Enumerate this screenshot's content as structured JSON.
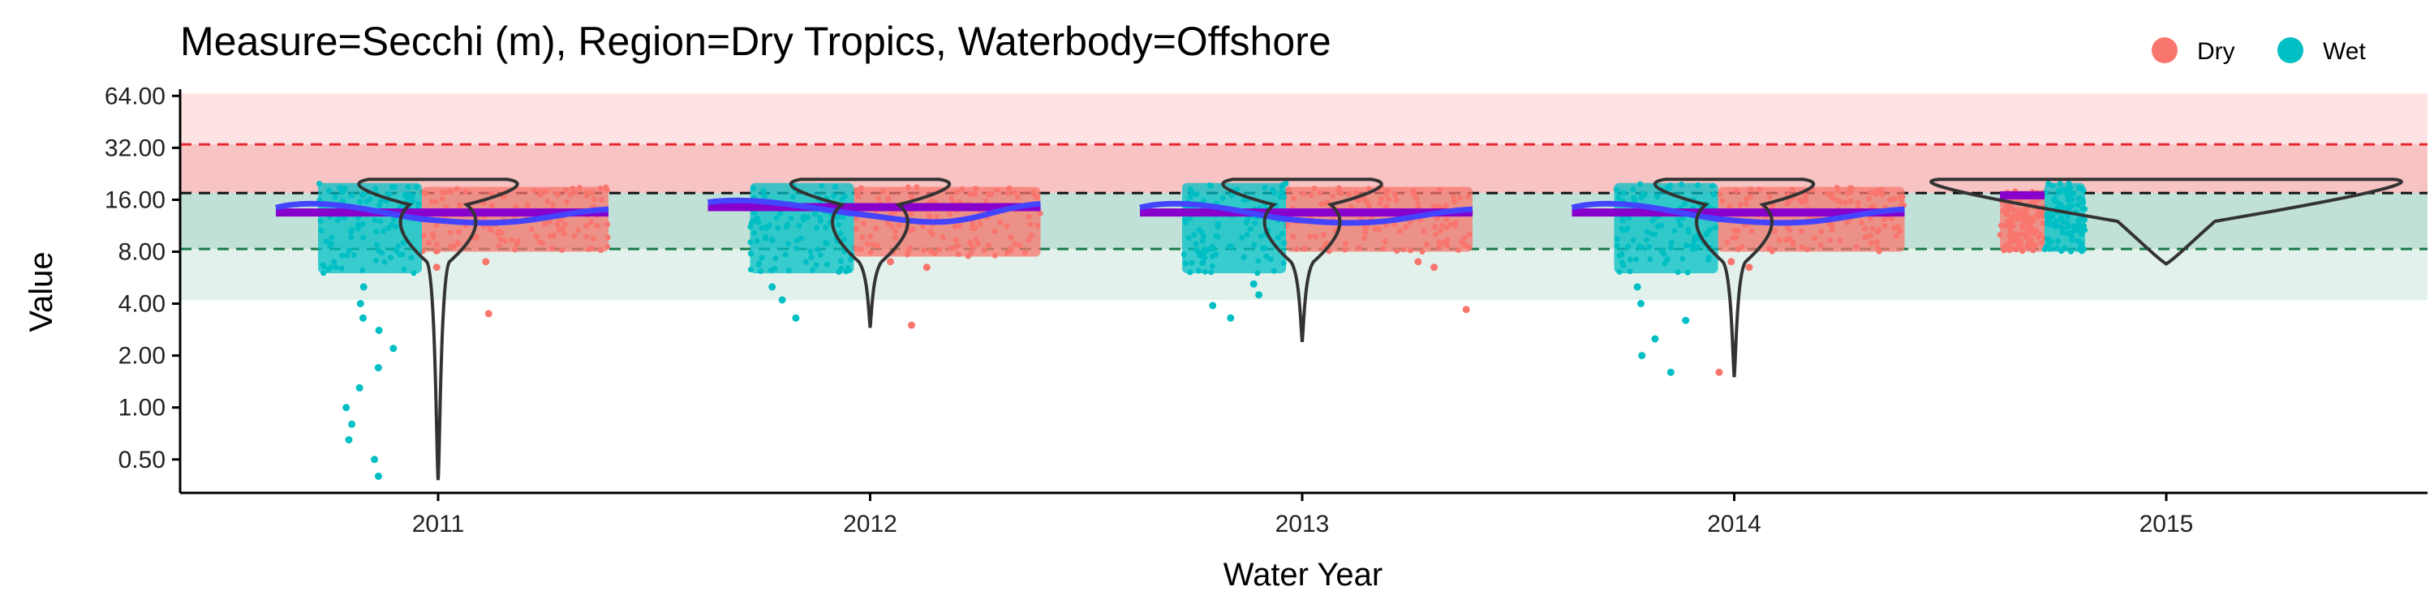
{
  "chart_data": {
    "type": "scatter",
    "title": "Measure=Secchi (m), Region=Dry Tropics, Waterbody=Offshore",
    "xlabel": "Water Year",
    "ylabel": "Value",
    "x_categories": [
      "2011",
      "2012",
      "2013",
      "2014",
      "2015"
    ],
    "y_scale": "log2",
    "y_ticks": [
      0.5,
      1,
      2,
      4,
      8,
      16,
      32,
      64
    ],
    "y_tick_labels": [
      "0.50",
      "1.00",
      "2.00",
      "4.00",
      "8.00",
      "16.00",
      "32.00",
      "64.00"
    ],
    "ylim": [
      0.32,
      70
    ],
    "grid": false,
    "legend": {
      "position": "top-right",
      "entries": [
        "Dry",
        "Wet"
      ]
    },
    "colors": {
      "Dry": "#F8766D",
      "Wet": "#00BFC4",
      "smooth": "#4444ff",
      "mean": "#8800cc",
      "violin": "#333333"
    },
    "threshold_bands": [
      {
        "from": 33.5,
        "to": 66,
        "color": "#fde3e3"
      },
      {
        "from": 17.5,
        "to": 33.5,
        "color": "#f8c3c3"
      },
      {
        "from": 8.3,
        "to": 17.5,
        "color": "#c1e1d8"
      },
      {
        "from": 4.2,
        "to": 8.3,
        "color": "#e3f1ec"
      }
    ],
    "reference_lines": [
      {
        "y": 33.5,
        "color": "#e8262f"
      },
      {
        "y": 17.5,
        "color": "#111111"
      },
      {
        "y": 8.3,
        "color": "#1a7a4a"
      }
    ],
    "series": [
      {
        "name": "Dry",
        "color": "#F8766D",
        "points": [
          {
            "x": "2011",
            "typical_range": [
              8,
              19
            ],
            "outliers": [
              3.5,
              6.5,
              7
            ]
          },
          {
            "x": "2012",
            "typical_range": [
              7.5,
              19
            ],
            "outliers": [
              3.0,
              6.5,
              7
            ]
          },
          {
            "x": "2013",
            "typical_range": [
              8,
              19
            ],
            "outliers": [
              3.7,
              6.5,
              7
            ]
          },
          {
            "x": "2014",
            "typical_range": [
              8,
              19
            ],
            "outliers": [
              1.6,
              6.5,
              7
            ]
          },
          {
            "x": "2015",
            "typical_range": [
              8,
              18
            ],
            "outliers": []
          }
        ]
      },
      {
        "name": "Wet",
        "color": "#00BFC4",
        "points": [
          {
            "x": "2011",
            "typical_range": [
              6,
              20
            ],
            "outliers": [
              0.4,
              0.5,
              0.65,
              0.8,
              1.0,
              1.3,
              1.7,
              2.2,
              2.8,
              3.3,
              4.0,
              5.0
            ]
          },
          {
            "x": "2012",
            "typical_range": [
              6,
              20
            ],
            "outliers": [
              3.3,
              4.2,
              5.0
            ]
          },
          {
            "x": "2013",
            "typical_range": [
              6,
              20
            ],
            "outliers": [
              3.3,
              3.9,
              4.5,
              5.2
            ]
          },
          {
            "x": "2014",
            "typical_range": [
              6,
              20
            ],
            "outliers": [
              1.6,
              2.0,
              2.5,
              3.2,
              4.0,
              5.0
            ]
          },
          {
            "x": "2015",
            "typical_range": [
              8,
              20
            ],
            "outliers": []
          }
        ]
      }
    ],
    "means": [
      {
        "x": "2011",
        "value": 13.5
      },
      {
        "x": "2012",
        "value": 14.5
      },
      {
        "x": "2013",
        "value": 13.5
      },
      {
        "x": "2014",
        "value": 13.5
      },
      {
        "x": "2015",
        "value": 17
      }
    ],
    "violins": [
      {
        "x": "2011",
        "min": 0.38,
        "max": 21
      },
      {
        "x": "2012",
        "min": 2.9,
        "max": 21
      },
      {
        "x": "2013",
        "min": 2.4,
        "max": 21
      },
      {
        "x": "2014",
        "min": 1.5,
        "max": 21
      },
      {
        "x": "2015",
        "min": 6.8,
        "max": 21
      }
    ]
  }
}
